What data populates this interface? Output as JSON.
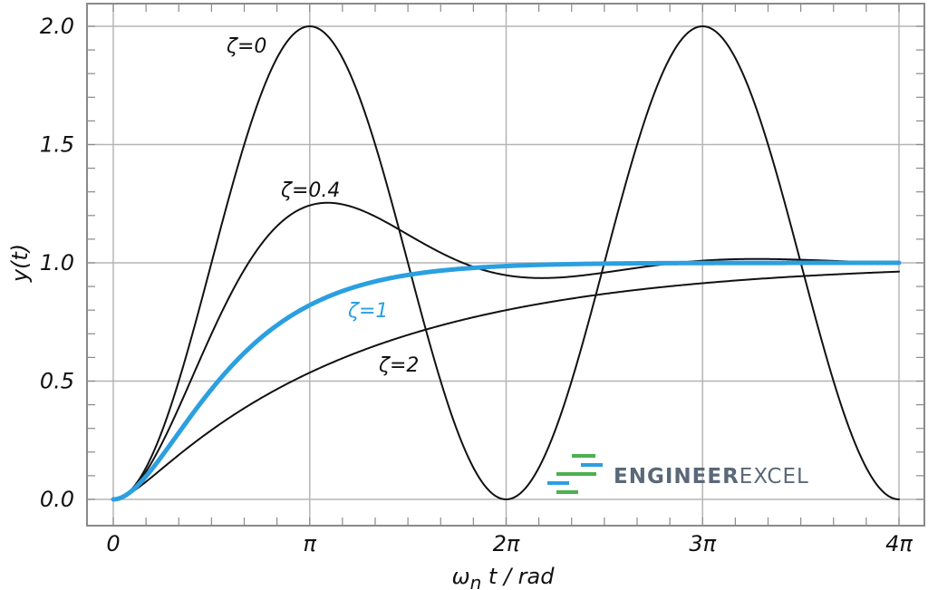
{
  "chart_data": {
    "type": "line",
    "xlabel": "ω",
    "xlabel_sub": "n",
    "xlabel_rest": " t / rad",
    "ylabel": "y(t)",
    "xlim": [
      0,
      12.566
    ],
    "ylim": [
      0,
      2.0
    ],
    "grid": true,
    "x_ticks": [
      {
        "value": 0,
        "label": "0"
      },
      {
        "value": 3.1416,
        "label": "π"
      },
      {
        "value": 6.2832,
        "label": "2π"
      },
      {
        "value": 9.4248,
        "label": "3π"
      },
      {
        "value": 12.5664,
        "label": "4π"
      }
    ],
    "y_ticks": [
      {
        "value": 0.0,
        "label": "0.0"
      },
      {
        "value": 0.5,
        "label": "0.5"
      },
      {
        "value": 1.0,
        "label": "1.0"
      },
      {
        "value": 1.5,
        "label": "1.5"
      },
      {
        "value": 2.0,
        "label": "2.0"
      }
    ],
    "series": [
      {
        "name": "ζ=0",
        "zeta": 0,
        "color": "#111111",
        "x": [
          0,
          1.571,
          3.142,
          4.712,
          6.283,
          7.854,
          9.425,
          10.996,
          12.566
        ],
        "y": [
          0,
          1.0,
          2.0,
          1.0,
          0,
          1.0,
          2.0,
          1.0,
          0
        ]
      },
      {
        "name": "ζ=0.4",
        "zeta": 0.4,
        "color": "#111111",
        "x": [
          0,
          1.571,
          3.428,
          6.283,
          6.856,
          10.284,
          12.566
        ],
        "y": [
          0,
          0.75,
          1.25,
          0.95,
          0.94,
          1.01,
          1.0
        ]
      },
      {
        "name": "ζ=1",
        "zeta": 1,
        "color": "#2b9fe0",
        "x": [
          0,
          1.571,
          3.142,
          4.712,
          6.283,
          9.425,
          12.566
        ],
        "y": [
          0,
          0.47,
          0.83,
          0.95,
          0.99,
          1.0,
          1.0
        ]
      },
      {
        "name": "ζ=2",
        "zeta": 2,
        "color": "#111111",
        "x": [
          0,
          1.571,
          3.142,
          6.283,
          9.425,
          12.566
        ],
        "y": [
          0,
          0.31,
          0.54,
          0.8,
          0.91,
          0.96
        ]
      }
    ]
  },
  "logo": {
    "text_bold": "ENGINEER",
    "text_light": "EXCEL",
    "colors": {
      "green": "#4cb050",
      "blue": "#2b9fe0",
      "text": "#5a6878"
    }
  }
}
